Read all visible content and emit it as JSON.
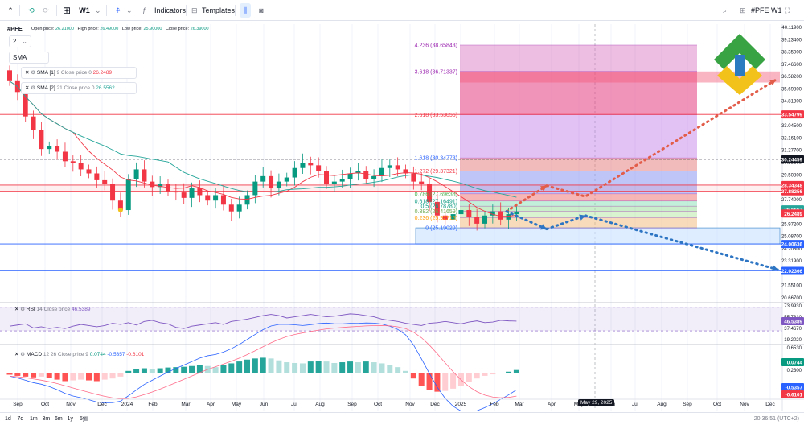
{
  "toolbar": {
    "interval": "W1",
    "indicators_label": "Indicators",
    "templates_label": "Templates",
    "symbol_right": "#PFE W1"
  },
  "legend": {
    "symbol": "#PFE",
    "open_label": "Open price:",
    "open_value": "26.21000",
    "high_label": "High price:",
    "high_value": "26.49000",
    "low_label": "Low price:",
    "low_value": "25.90000",
    "close_label": "Close price:",
    "close_value": "26.39000",
    "count_value": "2",
    "sma_chip": "SMA"
  },
  "indicators": [
    {
      "name": "SMA [1]",
      "params": "9 Close price 0",
      "value": "26.2489",
      "color": "#f23645"
    },
    {
      "name": "SMA [2]",
      "params": "21 Close price 0",
      "value": "26.5562",
      "color": "#26a69a"
    }
  ],
  "rsi": {
    "name": "RSI",
    "params": "14 Close price",
    "value": "46.5389"
  },
  "macd": {
    "name": "MACD",
    "params": "12 26 Close price 9",
    "v1": "0.0744",
    "v2": "-0.5357",
    "v3": "-0.6101"
  },
  "fib_labels": [
    "4.236 (38.65843)",
    "3.618 (36.71337)",
    "2.618 (33.53055)",
    "1.618 (30.34773)",
    "1.272 (29.37321)",
    "0.786 (27.69638)",
    "0.618 (27.16491)",
    "0.5 (26.78780)",
    "0.382 (26.41659)",
    "0.236 (25.92715)",
    "0 (25.19029)"
  ],
  "price_axis": [
    "40.11900",
    "39.23400",
    "38.35000",
    "37.46600",
    "36.58200",
    "35.69800",
    "34.81300",
    "33.92900",
    "33.04500",
    "32.16100",
    "31.27700",
    "30.39300",
    "29.50800",
    "28.62400",
    "27.74000",
    "26.85600",
    "25.97200",
    "25.08700",
    "24.20300",
    "23.31900",
    "22.43500",
    "21.55100",
    "20.66700"
  ],
  "price_tags": [
    {
      "text": "33.54799",
      "color": "#f23645"
    },
    {
      "text": "30.24459",
      "color": "#131722"
    },
    {
      "text": "28.34348",
      "color": "#f23645"
    },
    {
      "text": "27.88256",
      "color": "#f23645"
    },
    {
      "text": "26.5562",
      "color": "#26a69a"
    },
    {
      "text": "26.2489",
      "color": "#f23645"
    },
    {
      "text": "24.00636",
      "color": "#2962ff"
    },
    {
      "text": "22.02366",
      "color": "#2962ff"
    }
  ],
  "rsi_axis": [
    "73.9930",
    "55.7310",
    "37.4670",
    "19.2020"
  ],
  "rsi_tag": "46.5389",
  "macd_axis": [
    "0.6530",
    "0.2300",
    "-0.1880"
  ],
  "macd_tags": [
    {
      "text": "0.0744",
      "color": "#089981"
    },
    {
      "text": "-0.5357",
      "color": "#2962ff"
    },
    {
      "text": "-0.6101",
      "color": "#f23645"
    }
  ],
  "time_axis": [
    "Sep",
    "Oct",
    "Nov",
    "Dec",
    "2024",
    "Feb",
    "Mar",
    "Apr",
    "May",
    "Jun",
    "Jul",
    "Aug",
    "Sep",
    "Oct",
    "Nov",
    "Dec",
    "2025",
    "Feb",
    "Mar",
    "Apr",
    "May",
    "Jun",
    "Jul",
    "Aug",
    "Sep",
    "Oct",
    "Nov",
    "Dec"
  ],
  "crosshair_date": "May 29, 2025",
  "ranges": [
    "1d",
    "7d",
    "1m",
    "3m",
    "6m",
    "1y",
    "5y"
  ],
  "clock": "20:36:51 (UTC+2)",
  "chart_data": {
    "type": "candlestick",
    "symbol": "#PFE",
    "interval": "W1",
    "ylim": [
      19.8,
      40.2
    ],
    "fib_levels": [
      {
        "ratio": 4.236,
        "price": 38.65843
      },
      {
        "ratio": 3.618,
        "price": 36.71337
      },
      {
        "ratio": 2.618,
        "price": 33.53055
      },
      {
        "ratio": 1.618,
        "price": 30.34773
      },
      {
        "ratio": 1.272,
        "price": 29.37321
      },
      {
        "ratio": 0.786,
        "price": 27.69638
      },
      {
        "ratio": 0.618,
        "price": 27.16491
      },
      {
        "ratio": 0.5,
        "price": 26.7878
      },
      {
        "ratio": 0.382,
        "price": 26.41659
      },
      {
        "ratio": 0.236,
        "price": 25.92715
      },
      {
        "ratio": 0,
        "price": 25.19029
      }
    ],
    "horizontal_levels": [
      33.54799,
      30.24459,
      28.34348,
      27.88256,
      24.00636,
      22.02366
    ],
    "closes": [
      36.0,
      35.2,
      33.4,
      32.4,
      31.0,
      31.2,
      30.8,
      30.1,
      30.0,
      29.5,
      29.2,
      28.7,
      28.4,
      27.2,
      26.5,
      28.8,
      29.5,
      28.6,
      28.2,
      28.4,
      27.9,
      27.8,
      27.4,
      28.1,
      27.6,
      27.2,
      27.6,
      26.9,
      26.4,
      26.9,
      27.6,
      28.6,
      29.0,
      28.1,
      28.6,
      28.9,
      29.6,
      30.0,
      29.8,
      29.4,
      28.4,
      28.6,
      28.8,
      29.2,
      29.4,
      28.8,
      29.0,
      29.6,
      29.8,
      29.5,
      29.2,
      28.6,
      28.4,
      27.1,
      26.1,
      25.8,
      26.2,
      26.5,
      26.0,
      25.5,
      26.1,
      26.4,
      25.8,
      26.2,
      26.39
    ],
    "rsi": [
      38,
      40,
      42,
      35,
      37,
      34,
      36,
      34,
      38,
      41,
      39,
      37,
      39,
      43,
      41,
      44,
      40,
      46,
      48,
      44,
      42,
      36,
      34,
      38,
      40,
      42,
      44,
      41,
      46,
      48,
      50,
      53,
      56,
      58,
      56,
      52,
      54,
      56,
      58,
      56,
      54,
      55,
      57,
      59,
      58,
      56,
      54,
      50,
      48,
      46,
      43,
      41,
      39,
      43,
      44,
      46,
      44,
      42,
      45,
      47,
      44,
      45,
      48,
      47,
      46.5389
    ],
    "macd_hist": [
      -0.05,
      -0.08,
      -0.1,
      -0.12,
      -0.1,
      -0.14,
      -0.18,
      -0.22,
      -0.2,
      -0.18,
      -0.2,
      -0.22,
      -0.18,
      -0.15,
      -0.1,
      0.05,
      0.1,
      0.12,
      0.1,
      0.12,
      0.14,
      0.15,
      0.16,
      0.18,
      0.2,
      0.18,
      0.15,
      0.2,
      0.25,
      0.3,
      0.35,
      0.38,
      0.4,
      0.38,
      0.33,
      0.28,
      0.26,
      0.25,
      0.3,
      0.32,
      0.3,
      0.26,
      0.28,
      0.3,
      0.28,
      0.3,
      0.28,
      0.25,
      0.2,
      0.15,
      0.05,
      -0.15,
      -0.35,
      -0.45,
      -0.5,
      -0.48,
      -0.42,
      -0.35,
      -0.25,
      -0.15,
      -0.08,
      -0.04,
      0.0,
      0.03,
      0.0744
    ]
  }
}
